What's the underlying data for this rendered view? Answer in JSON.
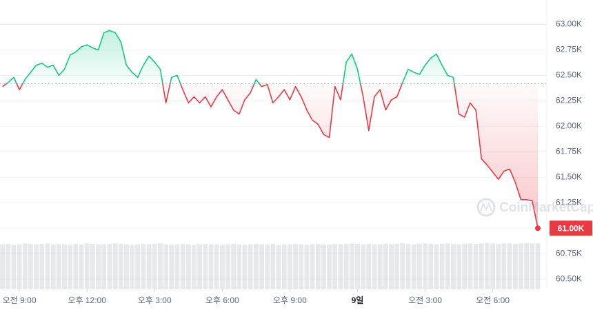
{
  "chart_data": {
    "type": "line",
    "x": [
      8.25,
      8.5,
      8.75,
      9,
      9.25,
      9.5,
      9.75,
      10,
      10.25,
      10.5,
      10.75,
      11,
      11.25,
      11.5,
      11.75,
      12,
      12.25,
      12.5,
      12.75,
      13,
      13.25,
      13.5,
      13.75,
      14,
      14.25,
      14.5,
      14.75,
      15,
      15.25,
      15.5,
      15.75,
      16,
      16.25,
      16.5,
      16.75,
      17,
      17.25,
      17.5,
      17.75,
      18,
      18.25,
      18.5,
      18.75,
      19,
      19.25,
      19.5,
      19.75,
      20,
      20.25,
      20.5,
      20.75,
      21,
      21.25,
      21.5,
      21.75,
      22,
      22.25,
      22.5,
      22.75,
      23,
      23.25,
      23.5,
      23.75,
      24,
      24.25,
      24.5,
      24.75,
      25,
      25.25,
      25.5,
      25.75,
      26,
      26.25,
      26.5,
      26.75,
      27,
      27.25,
      27.5,
      27.75,
      28,
      28.25,
      28.5,
      28.75,
      29,
      29.25,
      29.5,
      29.75,
      30,
      30.25,
      30.5,
      30.75,
      31,
      31.25,
      31.5,
      31.75,
      32
    ],
    "series": [
      {
        "values": [
          62.39,
          62.43,
          62.48,
          62.36,
          62.46,
          62.53,
          62.6,
          62.62,
          62.58,
          62.6,
          62.5,
          62.56,
          62.7,
          62.73,
          62.78,
          62.8,
          62.77,
          62.75,
          62.92,
          62.94,
          62.92,
          62.83,
          62.6,
          62.53,
          62.48,
          62.6,
          62.69,
          62.63,
          62.56,
          62.23,
          62.48,
          62.5,
          62.36,
          62.23,
          62.29,
          62.23,
          62.29,
          62.19,
          62.29,
          62.36,
          62.26,
          62.16,
          62.12,
          62.26,
          62.33,
          62.46,
          62.39,
          62.41,
          62.23,
          62.29,
          62.36,
          62.26,
          62.39,
          62.29,
          62.16,
          62.06,
          62.02,
          61.92,
          61.89,
          62.39,
          62.26,
          62.63,
          62.71,
          62.56,
          62.29,
          61.96,
          62.29,
          62.36,
          62.16,
          62.26,
          62.29,
          62.43,
          62.56,
          62.53,
          62.51,
          62.6,
          62.67,
          62.71,
          62.6,
          62.5,
          62.48,
          62.12,
          62.09,
          62.23,
          62.16,
          61.68,
          61.62,
          61.55,
          61.48,
          61.56,
          61.58,
          61.45,
          61.28,
          61.28,
          61.27,
          61.0
        ]
      }
    ],
    "volume": {
      "values": [
        96,
        97,
        95,
        96,
        98,
        97,
        96,
        97,
        98,
        96,
        97,
        96,
        95,
        97,
        96,
        98,
        97,
        96,
        96,
        97,
        98,
        97,
        96,
        95,
        96,
        97,
        96,
        97,
        98,
        96,
        95,
        96,
        97,
        96,
        95,
        96,
        97,
        96,
        96,
        95,
        96,
        97,
        96,
        95,
        96,
        97,
        96,
        96,
        97,
        95,
        96,
        96,
        97,
        96,
        95,
        96,
        97,
        96,
        96,
        97,
        96,
        97,
        98,
        97,
        96,
        97,
        96,
        96,
        97,
        96,
        97,
        98,
        97,
        96,
        97,
        98,
        97,
        96,
        97,
        98,
        97,
        96,
        97,
        98,
        97,
        98,
        99,
        98,
        97,
        98,
        98,
        97,
        98,
        99,
        98,
        98
      ],
      "lim": [
        0,
        100
      ],
      "color": "#d6d9de"
    },
    "baseline": 62.42,
    "up_color": "#16c784",
    "down_color": "#ea3943",
    "xlim": [
      8.14,
      32.0
    ],
    "ylim": [
      60.4,
      63.24
    ],
    "yticks": [
      {
        "value": 60.5,
        "label": "60.50K"
      },
      {
        "value": 60.75,
        "label": "60.75K"
      },
      {
        "value": 61,
        "label": "61.00K"
      },
      {
        "value": 61.25,
        "label": "61.25K"
      },
      {
        "value": 61.5,
        "label": "61.50K"
      },
      {
        "value": 61.75,
        "label": "61.75K"
      },
      {
        "value": 62,
        "label": "62.00K"
      },
      {
        "value": 62.25,
        "label": "62.25K"
      },
      {
        "value": 62.5,
        "label": "62.50K"
      },
      {
        "value": 62.75,
        "label": "62.75K"
      },
      {
        "value": 63,
        "label": "63.00K"
      }
    ],
    "xticks": [
      {
        "value": 9,
        "label": "오전 9:00"
      },
      {
        "value": 12,
        "label": "오후 12:00"
      },
      {
        "value": 15,
        "label": "오후 3:00"
      },
      {
        "value": 18,
        "label": "오후 6:00"
      },
      {
        "value": 21,
        "label": "오후 9:00"
      },
      {
        "value": 24,
        "label": "9일"
      },
      {
        "value": 27,
        "label": "오전 3:00"
      },
      {
        "value": 30,
        "label": "오전 6:00"
      }
    ],
    "current_price": {
      "value": 61.0,
      "label": "61.00K"
    },
    "grid": true,
    "watermark": "CoinMarketCap"
  }
}
